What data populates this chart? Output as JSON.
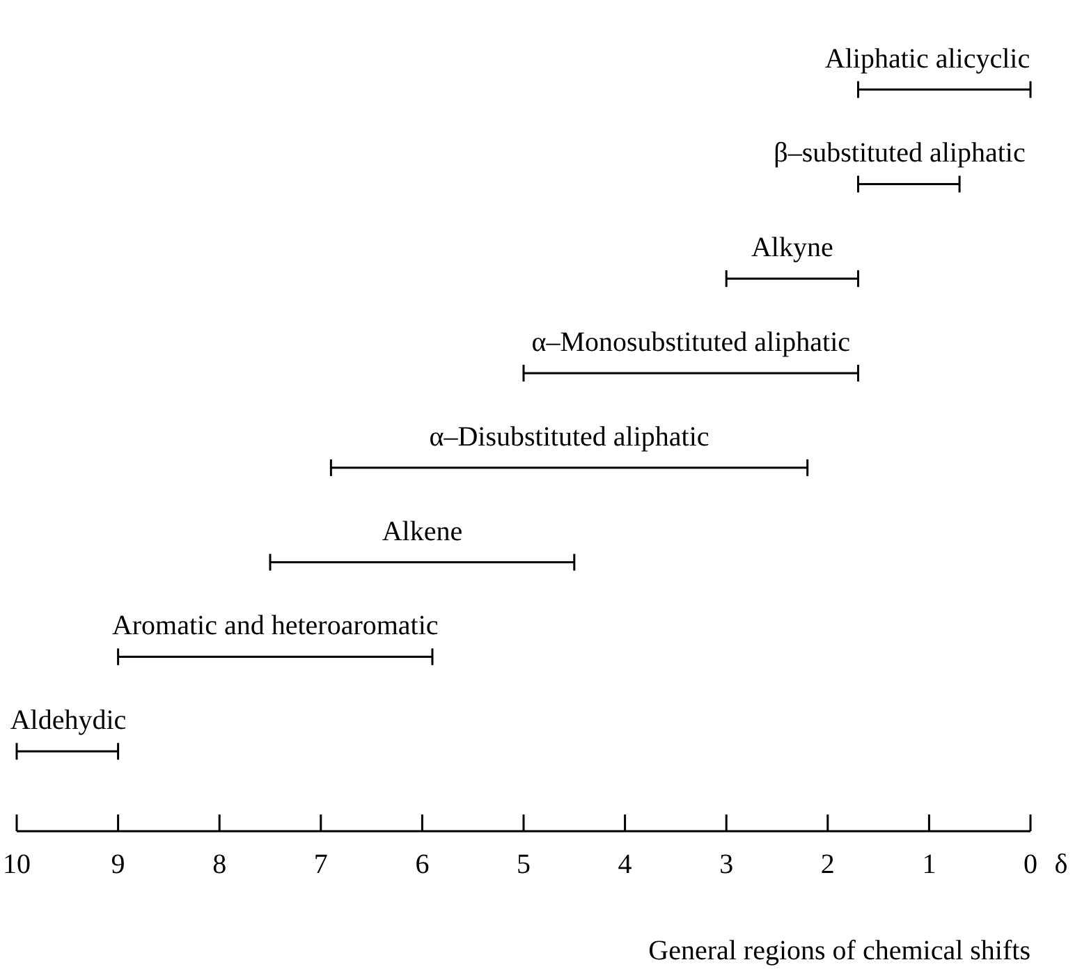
{
  "chart_data": {
    "type": "bar",
    "orientation": "horizontal",
    "xlabel": "General regions of chemical shifts",
    "categories": [
      "Aliphatic alicyclic",
      "β–substituted aliphatic",
      "Alkyne",
      "α–Monosubstituted aliphatic",
      "α–Disubstituted aliphatic",
      "Alkene",
      "Aromatic and heteroaromatic",
      "Aldehydic"
    ],
    "base": [
      0,
      0.7,
      1.7,
      1.7,
      2.2,
      4.5,
      5.9,
      9
    ],
    "values": [
      1.7,
      1.0,
      1.3,
      3.3,
      4.7,
      3.0,
      3.1,
      1
    ],
    "color": "#000000",
    "xlim": [
      10,
      0
    ],
    "xticks": [
      10,
      9,
      8,
      7,
      6,
      5,
      4,
      3,
      2,
      1,
      0
    ],
    "annotations": [
      "δ"
    ]
  }
}
